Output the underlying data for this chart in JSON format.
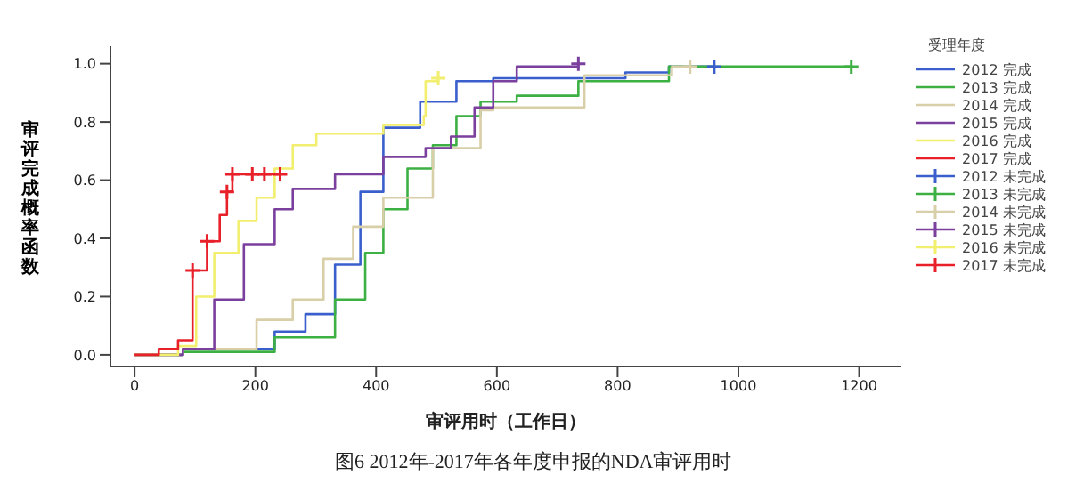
{
  "chart_data": {
    "type": "step",
    "xlabel": "审评用时（工作日）",
    "ylabel": "审评完成概率函数",
    "legend_title": "受理年度",
    "legend": "right",
    "grid": false,
    "marker": "none",
    "xlim": [
      -40,
      1270
    ],
    "xticks": [
      0,
      200,
      400,
      600,
      800,
      1000,
      1200
    ],
    "ylim": [
      -0.04,
      1.06
    ],
    "yticks": [
      {
        "value": 0,
        "label": "0.0"
      },
      {
        "value": 0.2,
        "label": "0.2"
      },
      {
        "value": 0.4,
        "label": "0.4"
      },
      {
        "value": 0.6,
        "label": "0.6"
      },
      {
        "value": 0.8,
        "label": "0.8"
      },
      {
        "value": 1,
        "label": "1.0"
      }
    ],
    "annotations": [
      "图6 2012年-2017年各年度申报的NDA审评用时"
    ],
    "series": [
      {
        "name": "2012 完成",
        "color": "#3a5fcd",
        "x": [
          0,
          80,
          232,
          283,
          332,
          374,
          412,
          473,
          533,
          594,
          813,
          885,
          960
        ],
        "values": [
          0,
          0.02,
          0.08,
          0.14,
          0.31,
          0.56,
          0.78,
          0.87,
          0.94,
          0.95,
          0.97,
          0.99,
          0.99
        ]
      },
      {
        "name": "2013 完成",
        "color": "#3cb043",
        "x": [
          0,
          80,
          232,
          332,
          382,
          412,
          452,
          494,
          533,
          573,
          633,
          735,
          885,
          1187
        ],
        "values": [
          0,
          0.01,
          0.06,
          0.19,
          0.35,
          0.5,
          0.64,
          0.72,
          0.82,
          0.87,
          0.89,
          0.94,
          0.99,
          0.99
        ]
      },
      {
        "name": "2014 完成",
        "color": "#d8cfa8",
        "x": [
          0,
          80,
          202,
          262,
          313,
          362,
          412,
          494,
          573,
          594,
          745,
          890,
          920
        ],
        "values": [
          0,
          0.02,
          0.12,
          0.19,
          0.33,
          0.44,
          0.54,
          0.71,
          0.84,
          0.85,
          0.96,
          0.99,
          0.99
        ]
      },
      {
        "name": "2015 完成",
        "color": "#7b3f9e",
        "x": [
          0,
          80,
          132,
          181,
          232,
          262,
          332,
          412,
          482,
          524,
          563,
          594,
          633,
          735
        ],
        "values": [
          0,
          0.02,
          0.19,
          0.38,
          0.5,
          0.57,
          0.62,
          0.68,
          0.71,
          0.75,
          0.85,
          0.94,
          0.99,
          1.0
        ]
      },
      {
        "name": "2016 完成",
        "color": "#f2ee6e",
        "x": [
          0,
          72,
          102,
          132,
          172,
          202,
          232,
          262,
          301,
          412,
          479,
          482,
          503
        ],
        "values": [
          0,
          0.03,
          0.2,
          0.35,
          0.46,
          0.54,
          0.64,
          0.72,
          0.76,
          0.79,
          0.82,
          0.94,
          0.95
        ]
      },
      {
        "name": "2017 完成",
        "color": "#e8202a",
        "x": [
          0,
          40,
          72,
          96,
          120,
          141,
          153,
          162,
          241
        ],
        "values": [
          0,
          0.02,
          0.05,
          0.29,
          0.39,
          0.48,
          0.56,
          0.62,
          0.62
        ]
      },
      {
        "name": "2012 未完成",
        "type": "scatter",
        "marker": "cross",
        "color": "#3a5fcd",
        "x": [
          960
        ],
        "values": [
          0.99
        ]
      },
      {
        "name": "2013 未完成",
        "type": "scatter",
        "marker": "cross",
        "color": "#3cb043",
        "x": [
          1187
        ],
        "values": [
          0.99
        ]
      },
      {
        "name": "2014 未完成",
        "type": "scatter",
        "marker": "cross",
        "color": "#d8cfa8",
        "x": [
          920
        ],
        "values": [
          0.99
        ]
      },
      {
        "name": "2015 未完成",
        "type": "scatter",
        "marker": "cross",
        "color": "#7b3f9e",
        "x": [
          735
        ],
        "values": [
          1.0
        ]
      },
      {
        "name": "2016 未完成",
        "type": "scatter",
        "marker": "cross",
        "color": "#f2ee6e",
        "x": [
          503
        ],
        "values": [
          0.95
        ]
      },
      {
        "name": "2017 未完成",
        "type": "scatter",
        "marker": "cross",
        "color": "#e8202a",
        "x": [
          96,
          120,
          153,
          162,
          195,
          215,
          241
        ],
        "values": [
          0.29,
          0.39,
          0.56,
          0.62,
          0.62,
          0.62,
          0.62
        ]
      }
    ]
  }
}
